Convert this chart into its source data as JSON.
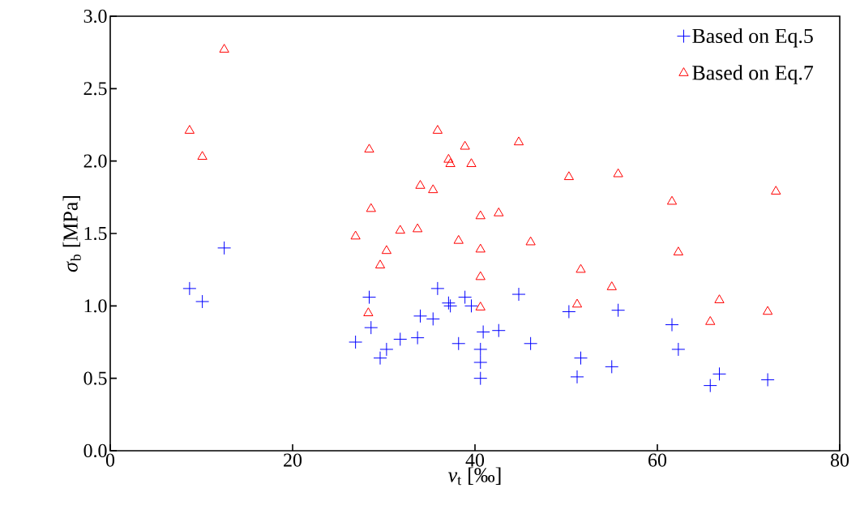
{
  "chart_data": {
    "type": "scatter",
    "xlabel": "*v*$_{t}$ [‰]",
    "ylabel": "*σ*$_{b}$ [MPa]",
    "xlim": [
      0,
      80
    ],
    "xticks": [
      0,
      20,
      40,
      60,
      80
    ],
    "ylim": [
      0,
      3.0
    ],
    "yticks": [
      {
        "value": 0,
        "label": "0.0"
      },
      {
        "value": 0.5,
        "label": "0.5"
      },
      {
        "value": 1.0,
        "label": "1.0"
      },
      {
        "value": 1.5,
        "label": "1.5"
      },
      {
        "value": 2.0,
        "label": "2.0"
      },
      {
        "value": 2.5,
        "label": "2.5"
      },
      {
        "value": 3.0,
        "label": "3.0"
      }
    ],
    "legend": "top right",
    "series": [
      {
        "name": "Based on Eq.5",
        "color": "#0000ff",
        "marker": "cross",
        "x": [
          8.7,
          10.1,
          12.5,
          26.9,
          28.4,
          28.6,
          29.6,
          30.3,
          31.8,
          33.7,
          34.0,
          35.4,
          35.9,
          37.1,
          37.3,
          38.2,
          38.9,
          39.6,
          40.6,
          40.6,
          40.6,
          40.9,
          42.6,
          44.8,
          46.1,
          50.3,
          51.2,
          51.6,
          55.0,
          55.7,
          61.6,
          62.3,
          65.8,
          66.8,
          72.1
        ],
        "values": [
          1.12,
          1.03,
          1.4,
          0.75,
          1.06,
          0.85,
          0.64,
          0.7,
          0.77,
          0.78,
          0.93,
          0.91,
          1.12,
          1.02,
          1.0,
          0.74,
          1.06,
          1.0,
          0.7,
          0.61,
          0.5,
          0.82,
          0.83,
          1.08,
          0.74,
          0.96,
          0.51,
          0.64,
          0.58,
          0.97,
          0.87,
          0.7,
          0.45,
          0.53,
          0.49
        ]
      },
      {
        "name": "Based on Eq.7",
        "color": "#ff0000",
        "marker": "triangle",
        "x": [
          8.7,
          10.1,
          12.5,
          26.9,
          28.4,
          28.6,
          28.3,
          29.6,
          30.3,
          31.8,
          33.7,
          34.0,
          35.4,
          35.9,
          37.1,
          37.3,
          38.2,
          38.9,
          39.6,
          40.6,
          40.6,
          40.6,
          40.6,
          42.6,
          44.8,
          46.1,
          50.3,
          51.2,
          51.6,
          55.0,
          55.7,
          61.6,
          62.3,
          65.8,
          66.8,
          72.1,
          73.0
        ],
        "values": [
          2.21,
          2.03,
          2.77,
          1.48,
          2.08,
          1.67,
          0.95,
          1.28,
          1.38,
          1.52,
          1.53,
          1.83,
          1.8,
          2.21,
          2.01,
          1.98,
          1.45,
          2.1,
          1.98,
          1.62,
          1.39,
          1.2,
          0.99,
          1.64,
          2.13,
          1.44,
          1.89,
          1.01,
          1.25,
          1.13,
          1.91,
          1.72,
          1.37,
          0.89,
          1.04,
          0.96,
          1.79
        ]
      }
    ]
  }
}
